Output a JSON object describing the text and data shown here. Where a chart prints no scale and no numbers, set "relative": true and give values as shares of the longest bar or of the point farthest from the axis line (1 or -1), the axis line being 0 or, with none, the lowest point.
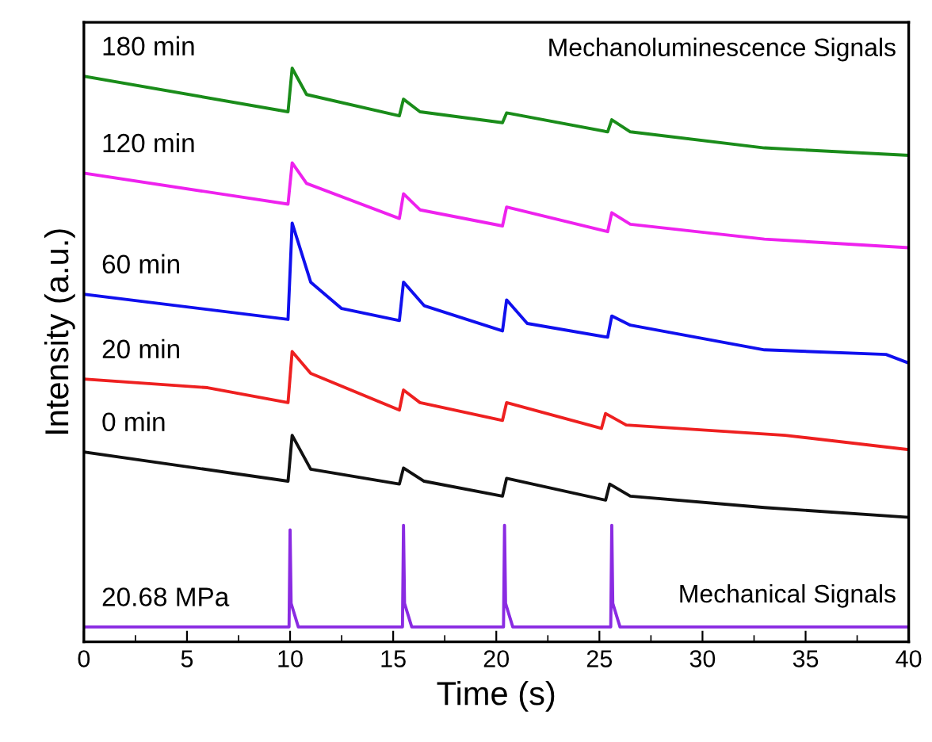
{
  "chart_data": {
    "type": "line",
    "relative": true,
    "xlabel": "Time (s)",
    "ylabel": "Intensity (a.u.)",
    "xlim": [
      0,
      40
    ],
    "xticks": [
      0,
      5,
      10,
      15,
      20,
      25,
      30,
      35,
      40
    ],
    "grid": false,
    "legend": false,
    "marker": "none",
    "line_style": "solid",
    "annotations": [
      "Mechanoluminescence Signals",
      "Mechanical Signals"
    ],
    "series": [
      {
        "name": "180 min",
        "color": "#1a8c1a",
        "x": [
          0,
          9.9,
          10.1,
          10.8,
          15.3,
          15.5,
          16.3,
          20.3,
          20.5,
          25.4,
          25.6,
          26.5,
          33,
          40
        ],
        "values": [
          0.986,
          0.924,
          1.0,
          0.954,
          0.917,
          0.946,
          0.924,
          0.905,
          0.922,
          0.889,
          0.91,
          0.889,
          0.861,
          0.848
        ]
      },
      {
        "name": "120 min",
        "color": "#ee22ee",
        "x": [
          0,
          9.9,
          10.1,
          10.8,
          15.3,
          15.5,
          16.3,
          20.3,
          20.5,
          25.4,
          25.6,
          26.5,
          33,
          40
        ],
        "values": [
          0.817,
          0.763,
          0.835,
          0.799,
          0.738,
          0.781,
          0.753,
          0.725,
          0.758,
          0.715,
          0.748,
          0.728,
          0.702,
          0.687
        ]
      },
      {
        "name": "60 min",
        "color": "#1010ee",
        "x": [
          0,
          9.9,
          10.1,
          11,
          12.5,
          15.3,
          15.5,
          16.5,
          20.3,
          20.5,
          21.5,
          25.4,
          25.6,
          26.5,
          33,
          38.9,
          40
        ],
        "values": [
          0.606,
          0.562,
          0.73,
          0.627,
          0.581,
          0.56,
          0.627,
          0.586,
          0.542,
          0.596,
          0.555,
          0.531,
          0.568,
          0.552,
          0.509,
          0.501,
          0.486
        ]
      },
      {
        "name": "20 min",
        "color": "#ee2020",
        "x": [
          0,
          6,
          9.9,
          10.1,
          11,
          15.3,
          15.5,
          16.3,
          20.3,
          20.5,
          25.1,
          25.3,
          26.3,
          34,
          40
        ],
        "values": [
          0.458,
          0.443,
          0.417,
          0.506,
          0.468,
          0.404,
          0.439,
          0.417,
          0.386,
          0.417,
          0.372,
          0.398,
          0.378,
          0.36,
          0.335
        ]
      },
      {
        "name": "0 min",
        "color": "#111111",
        "x": [
          0,
          9.9,
          10.1,
          11,
          15.3,
          15.5,
          16.5,
          20.3,
          20.5,
          25.3,
          25.5,
          26.5,
          33,
          40
        ],
        "values": [
          0.331,
          0.28,
          0.36,
          0.301,
          0.275,
          0.303,
          0.28,
          0.254,
          0.285,
          0.247,
          0.275,
          0.254,
          0.234,
          0.217
        ]
      },
      {
        "name": "20.68 MPa",
        "color": "#8a2be2",
        "x": [
          0,
          9.95,
          10.0,
          10.05,
          10.4,
          15.45,
          15.5,
          15.55,
          15.9,
          20.35,
          20.4,
          20.45,
          20.8,
          25.55,
          25.6,
          25.65,
          26.0,
          40
        ],
        "values": [
          0.026,
          0.026,
          0.195,
          0.067,
          0.026,
          0.026,
          0.203,
          0.067,
          0.026,
          0.026,
          0.203,
          0.067,
          0.026,
          0.026,
          0.203,
          0.067,
          0.026,
          0.026
        ]
      }
    ]
  }
}
